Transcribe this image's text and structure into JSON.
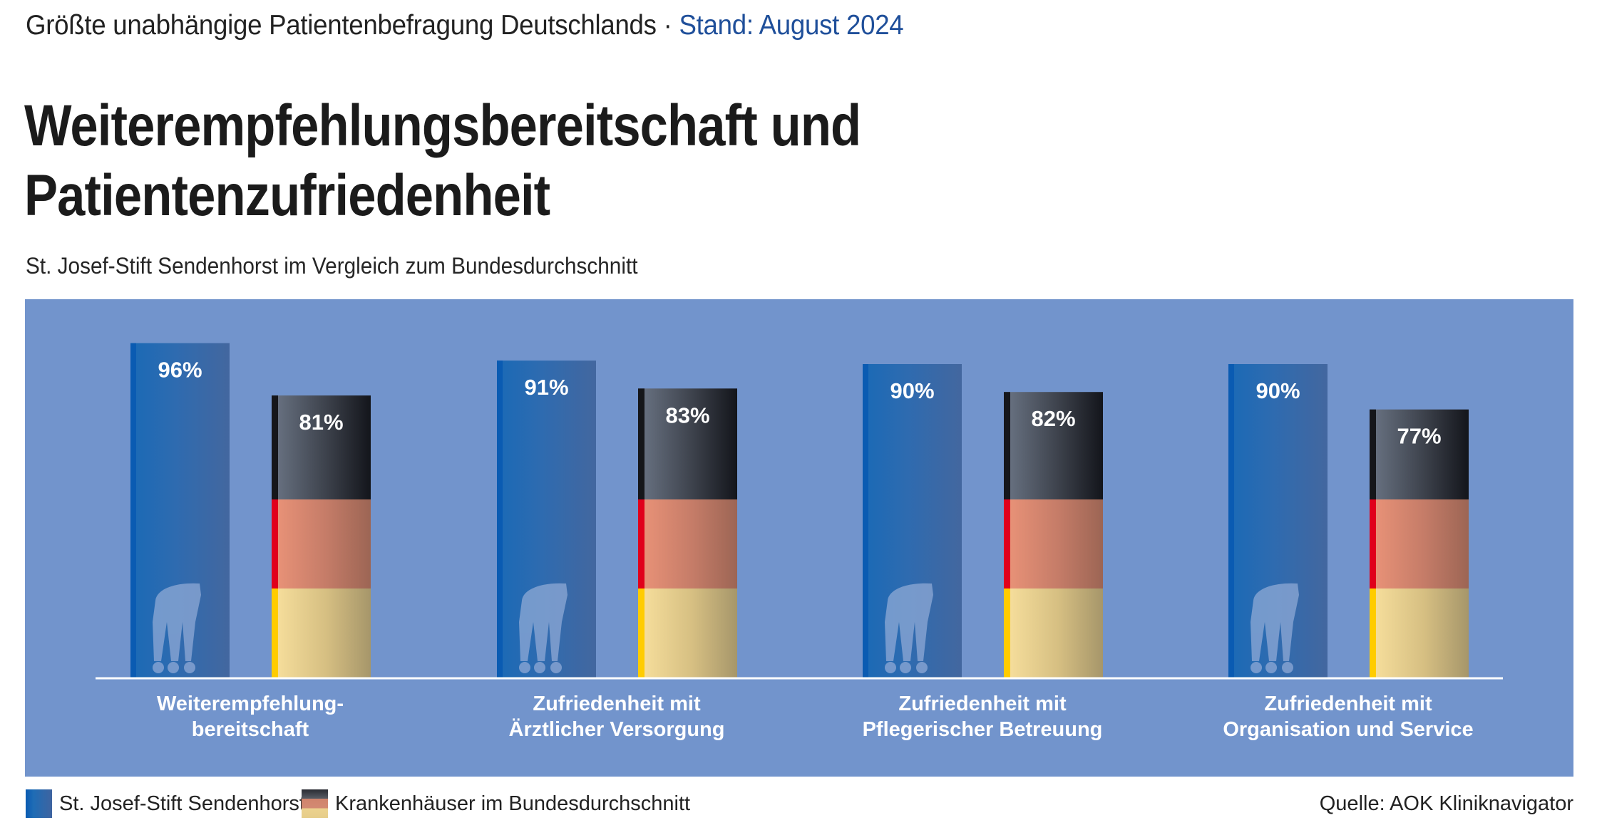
{
  "header": {
    "kicker": "Größte unabhängige Patientenbefragung Deutschlands · ",
    "kicker_accent": "Stand: August 2024",
    "title_line1": "Weiterempfehlungsbereitschaft und",
    "title_line2": "Patientenzufriedenheit",
    "subtitle": "St. Josef-Stift Sendenhorst im Vergleich zum  Bundesdurchschnitt"
  },
  "colors": {
    "panel": "#7294cc",
    "hospital_bar": "#2a68b0",
    "hospital_bar_edge": "#0a5bb2",
    "flag_black": "#2a2c33",
    "flag_red": "#e0001b",
    "flag_gold": "#ffcc00",
    "accent_text": "#1f4f9a"
  },
  "chart_data": {
    "type": "bar",
    "title": "Weiterempfehlungsbereitschaft und Patientenzufriedenheit",
    "subtitle": "St. Josef-Stift Sendenhorst im Vergleich zum  Bundesdurchschnitt",
    "categories": [
      [
        "Weiterempfehlung-",
        "bereitschaft"
      ],
      [
        "Zufriedenheit mit",
        "Ärztlicher Versorgung"
      ],
      [
        "Zufriedenheit mit",
        "Pflegerischer Betreuung"
      ],
      [
        "Zufriedenheit mit",
        "Organisation und Service"
      ]
    ],
    "series": [
      {
        "name": "St. Josef-Stift Sendenhorst",
        "values": [
          96,
          91,
          90,
          90
        ],
        "labels": [
          "96%",
          "91%",
          "90%",
          "90%"
        ]
      },
      {
        "name": "Krankenhäuser im Bundesdurchschnitt",
        "values": [
          81,
          83,
          82,
          77
        ],
        "labels": [
          "81%",
          "83%",
          "82%",
          "77%"
        ]
      }
    ],
    "unit": "%",
    "ylim": [
      0,
      100
    ],
    "grid": false,
    "legend": "bottom-left"
  },
  "legend": {
    "items": [
      {
        "label": "St. Josef-Stift Sendenhorst",
        "icon": "blue-swatch"
      },
      {
        "label": "Krankenhäuser im Bundesdurchschnitt",
        "icon": "german-flag-swatch"
      }
    ]
  },
  "source": "Quelle: AOK Kliniknavigator"
}
